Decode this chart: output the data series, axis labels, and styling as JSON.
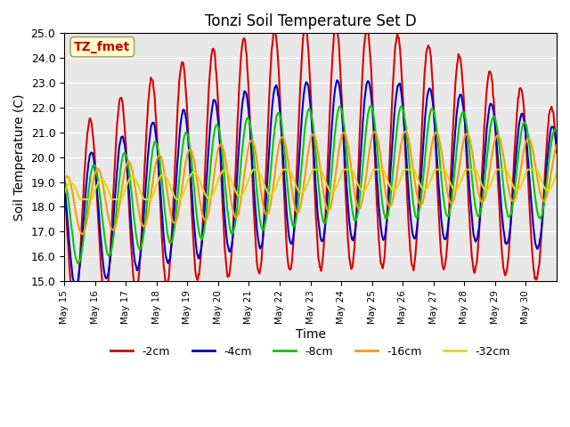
{
  "title": "Tonzi Soil Temperature Set D",
  "xlabel": "Time",
  "ylabel": "Soil Temperature (C)",
  "ylim": [
    15.0,
    25.0
  ],
  "yticks": [
    15.0,
    16.0,
    17.0,
    18.0,
    19.0,
    20.0,
    21.0,
    22.0,
    23.0,
    24.0,
    25.0
  ],
  "xtick_labels": [
    "May 15",
    "May 16",
    "May 17",
    "May 18",
    "May 19",
    "May 20",
    "May 21",
    "May 22",
    "May 23",
    "May 24",
    "May 25",
    "May 26",
    "May 27",
    "May 28",
    "May 29",
    "May 30"
  ],
  "annotation_text": "TZ_fmet",
  "annotation_color": "#cc0000",
  "annotation_bg": "#ffffcc",
  "lines": [
    {
      "label": "-2cm",
      "color": "#dd0000",
      "lw": 1.5
    },
    {
      "label": "-4cm",
      "color": "#0000cc",
      "lw": 1.5
    },
    {
      "label": "-8cm",
      "color": "#00cc00",
      "lw": 1.5
    },
    {
      "label": "-16cm",
      "color": "#ff9900",
      "lw": 1.5
    },
    {
      "label": "-32cm",
      "color": "#dddd00",
      "lw": 1.5
    }
  ],
  "bg_color": "#e8e8e8",
  "legend_ncol": 5,
  "n_days": 16,
  "pts_per_day": 48
}
